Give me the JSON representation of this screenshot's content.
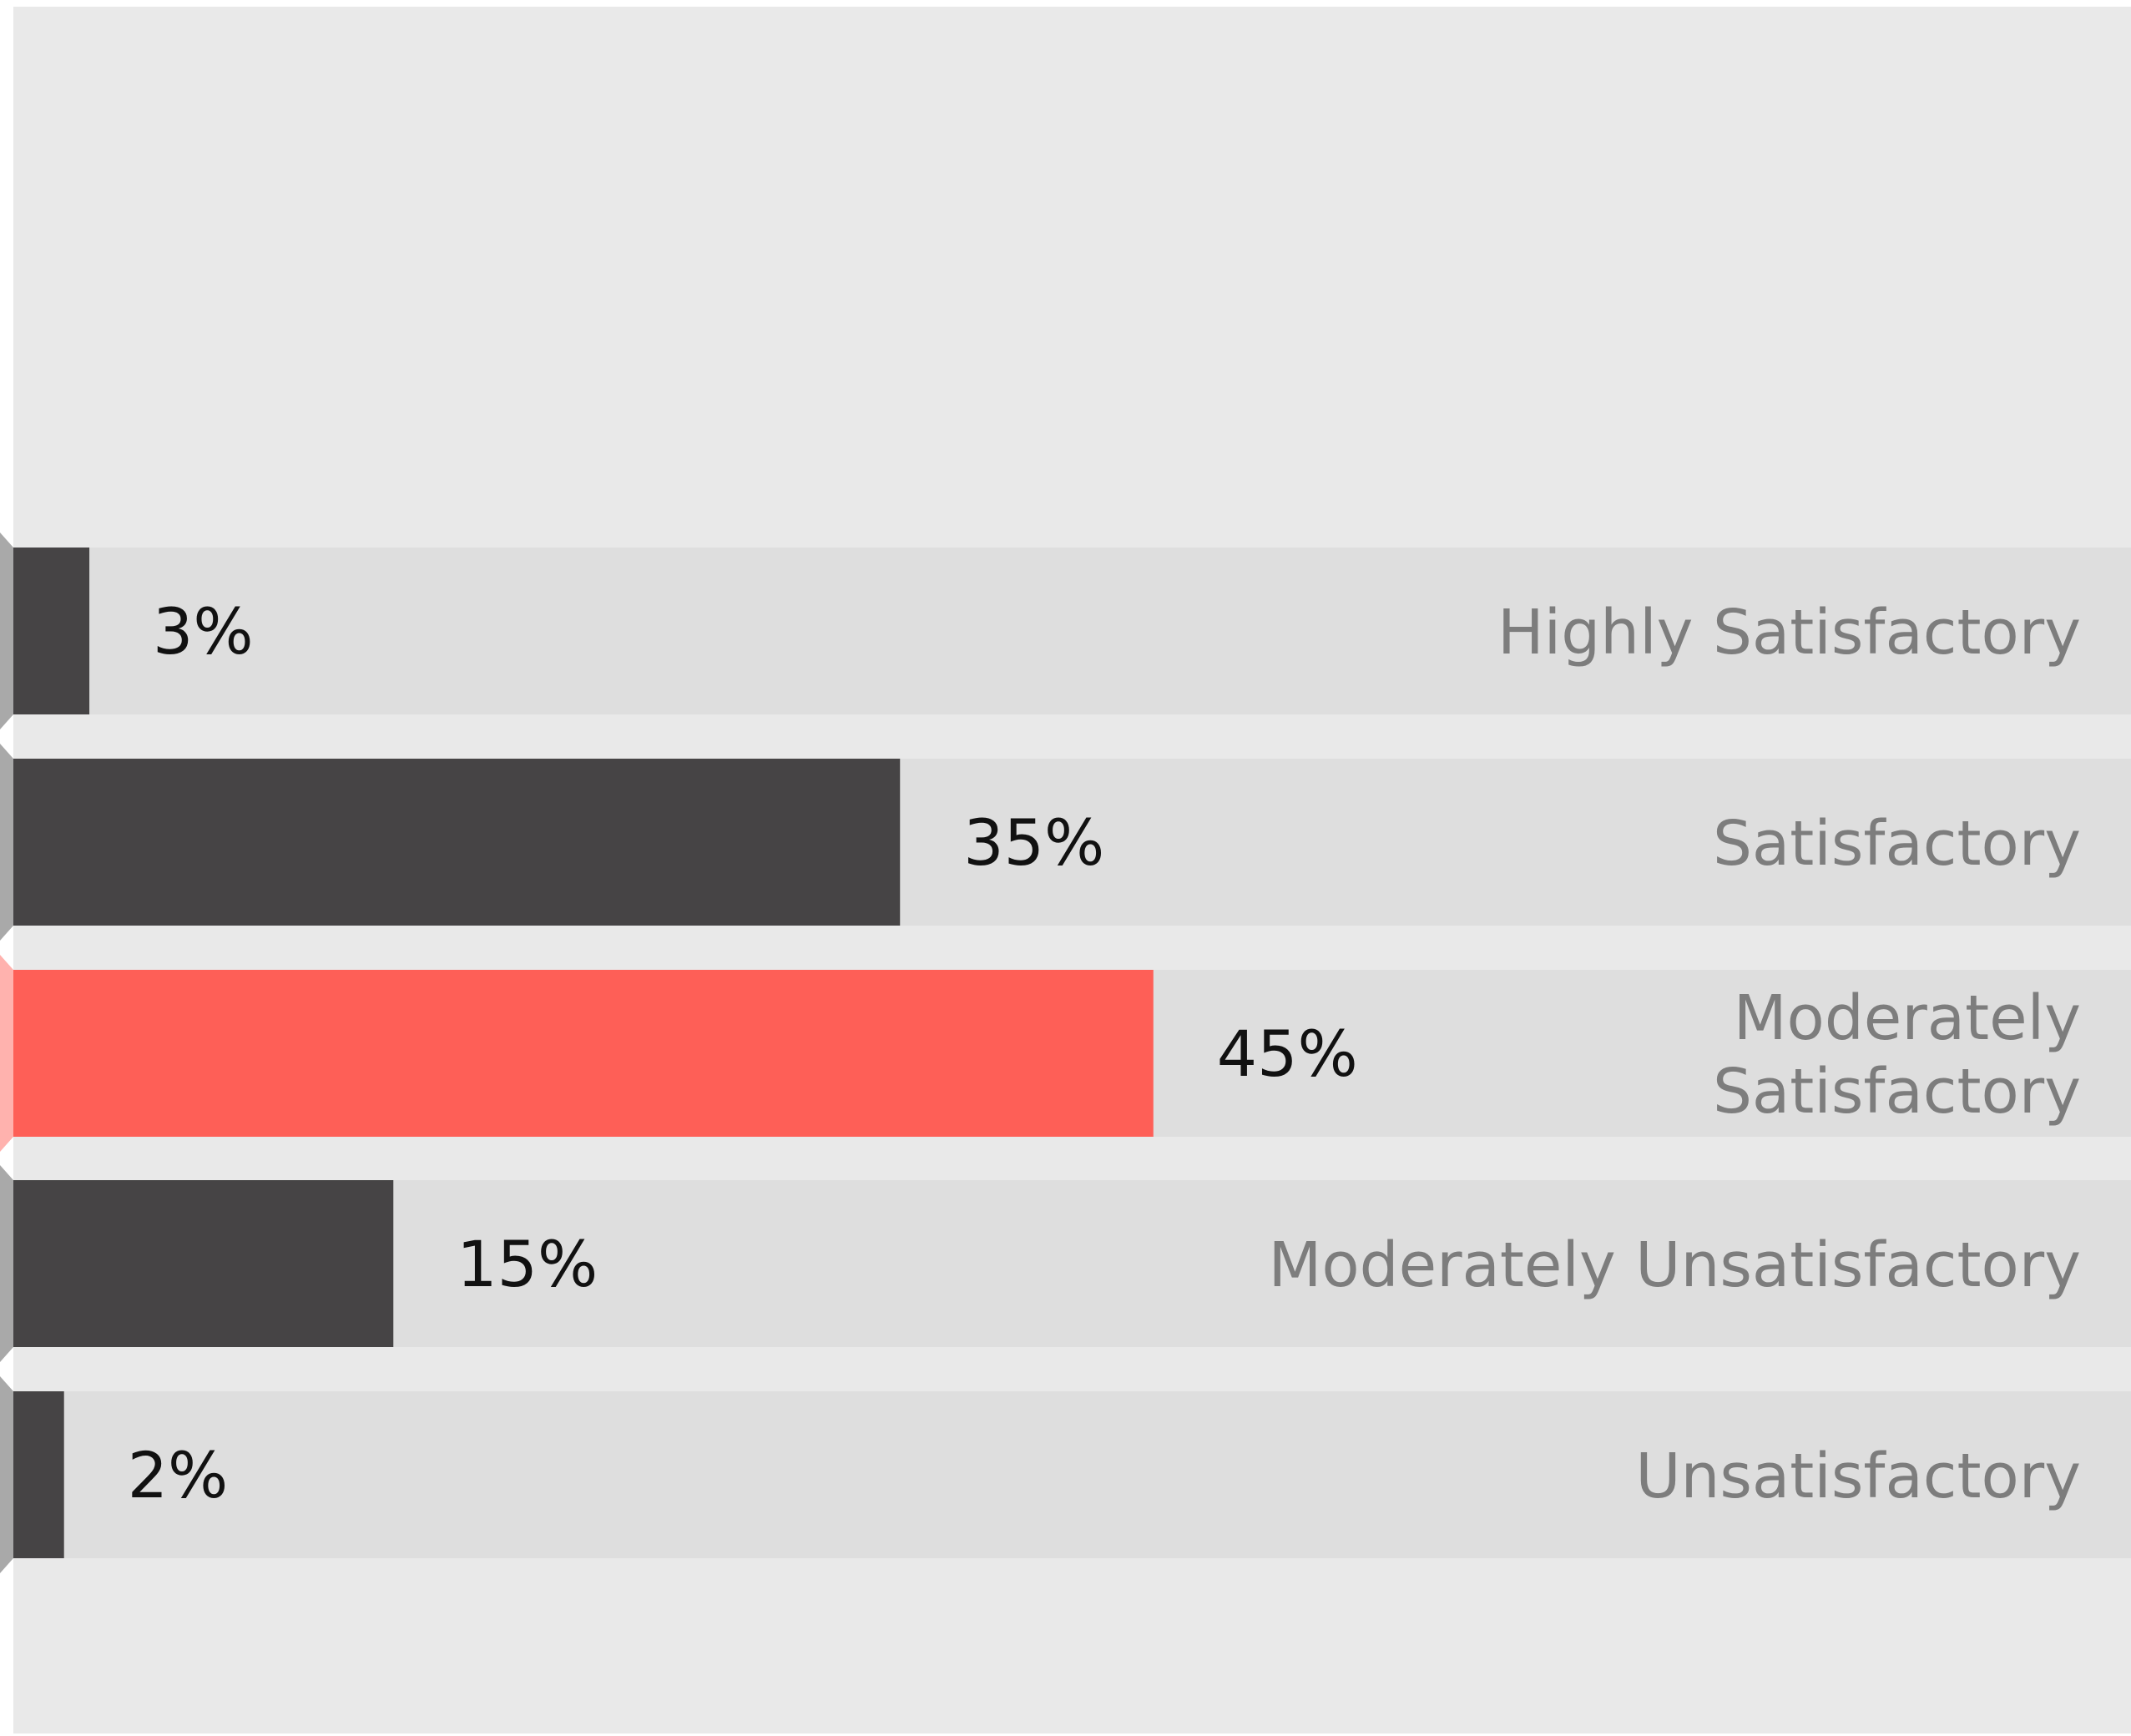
{
  "chart_data": {
    "type": "bar",
    "orientation": "horizontal",
    "categories": [
      "Highly Satisfactory",
      "Satisfactory",
      "Moderately Satisfactory",
      "Moderately Unsatisfactory",
      "Unsatisfactory"
    ],
    "category_lines": [
      [
        "Highly Satisfactory"
      ],
      [
        "Satisfactory"
      ],
      [
        "Moderately",
        "Satisfactory"
      ],
      [
        "Moderately Unsatisfactory"
      ],
      [
        "Unsatisfactory"
      ]
    ],
    "values": [
      3,
      35,
      45,
      15,
      2
    ],
    "value_labels": [
      "3%",
      "35%",
      "45%",
      "15%",
      "2%"
    ],
    "xlim": [
      0,
      100
    ],
    "grid": false,
    "legend": "none",
    "highlight_index": 2,
    "colors": {
      "panel_background": "#e9e9e9",
      "track": "#dedede",
      "bar": "#464445",
      "highlight_bar": "#fe5f57",
      "tab": "#a9a9a9",
      "highlight_tab": "#ffb2ae",
      "value_label": "#111111",
      "category_label": "#7d7d7d"
    }
  }
}
